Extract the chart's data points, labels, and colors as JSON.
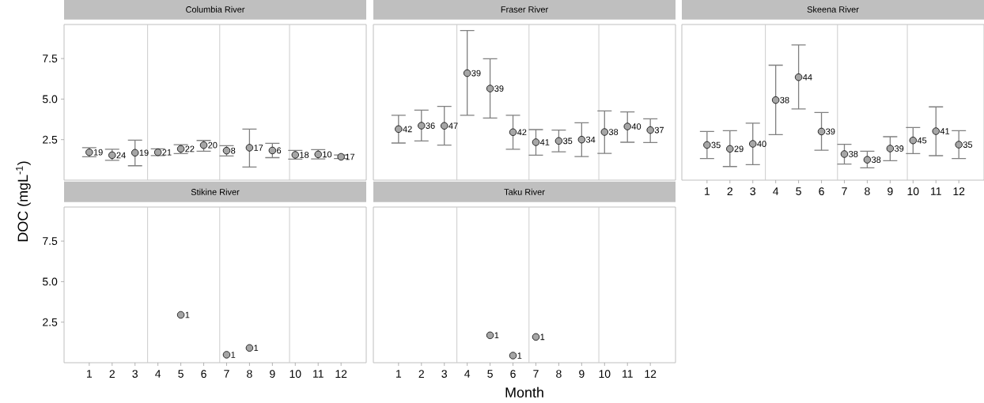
{
  "chart_data": [
    {
      "type": "scatter",
      "title": "Columbia River",
      "ylabel": "DOC (mgL$^{-1}$)",
      "x": [
        1,
        2,
        3,
        4,
        5,
        6,
        7,
        8,
        9,
        10,
        11,
        12
      ],
      "values": [
        1.72,
        1.54,
        1.69,
        1.72,
        1.93,
        2.16,
        1.82,
        2.0,
        1.83,
        1.56,
        1.59,
        1.44
      ],
      "errors": [
        [
          1.44,
          2.0
        ],
        [
          1.22,
          1.91
        ],
        [
          0.89,
          2.47
        ],
        [
          1.52,
          1.93
        ],
        [
          1.64,
          2.19
        ],
        [
          1.78,
          2.45
        ],
        [
          1.49,
          2.13
        ],
        [
          0.81,
          3.15
        ],
        [
          1.39,
          2.27
        ],
        [
          1.3,
          1.83
        ],
        [
          1.31,
          1.88
        ],
        [
          1.33,
          1.55
        ]
      ],
      "annotations": [
        {
          "text": "19",
          "x": 1,
          "y": 1.72
        },
        {
          "text": "24",
          "x": 2,
          "y": 1.54
        },
        {
          "text": "19",
          "x": 3,
          "y": 1.69
        },
        {
          "text": "21",
          "x": 4,
          "y": 1.72
        },
        {
          "text": "22",
          "x": 5,
          "y": 1.93
        },
        {
          "text": "20",
          "x": 6,
          "y": 2.16
        },
        {
          "text": "8",
          "x": 7,
          "y": 1.82
        },
        {
          "text": "17",
          "x": 8,
          "y": 2.0
        },
        {
          "text": "6",
          "x": 9,
          "y": 1.83
        },
        {
          "text": "18",
          "x": 10,
          "y": 1.56
        },
        {
          "text": "10",
          "x": 11,
          "y": 1.59
        },
        {
          "text": "17",
          "x": 12,
          "y": 1.44
        }
      ],
      "color": "#a6a6a6",
      "marker": "circle",
      "xlim": [
        -0.1,
        13.1
      ],
      "ylim": [
        0,
        9.6
      ],
      "yticks": [
        {
          "value": 2.5,
          "label": "2.5"
        },
        {
          "value": 5,
          "label": "5.0"
        },
        {
          "value": 7.5,
          "label": "7.5"
        }
      ],
      "tick_labels": "y",
      "ref_lines": [
        {
          "axis": "x",
          "value": 3.55,
          "color": "#cccccc"
        },
        {
          "axis": "x",
          "value": 6.7,
          "color": "#cccccc"
        },
        {
          "axis": "x",
          "value": 9.75,
          "color": "#cccccc"
        }
      ]
    },
    {
      "type": "scatter",
      "title": "Fraser River",
      "x": [
        1,
        2,
        3,
        4,
        5,
        6,
        7,
        8,
        9,
        10,
        11,
        12
      ],
      "values": [
        3.15,
        3.36,
        3.35,
        6.6,
        5.65,
        2.96,
        2.34,
        2.42,
        2.5,
        2.97,
        3.31,
        3.09
      ],
      "errors": [
        [
          2.29,
          4.0
        ],
        [
          2.42,
          4.32
        ],
        [
          2.16,
          4.55
        ],
        [
          4.0,
          9.23
        ],
        [
          3.83,
          7.49
        ],
        [
          1.91,
          4.0
        ],
        [
          1.54,
          3.12
        ],
        [
          1.75,
          3.09
        ],
        [
          1.46,
          3.54
        ],
        [
          1.65,
          4.27
        ],
        [
          2.34,
          4.21
        ],
        [
          2.32,
          3.78
        ]
      ],
      "annotations": [
        {
          "text": "42",
          "x": 1,
          "y": 3.15
        },
        {
          "text": "36",
          "x": 2,
          "y": 3.36
        },
        {
          "text": "47",
          "x": 3,
          "y": 3.35
        },
        {
          "text": "39",
          "x": 4,
          "y": 6.6
        },
        {
          "text": "39",
          "x": 5,
          "y": 5.65
        },
        {
          "text": "42",
          "x": 6,
          "y": 2.96
        },
        {
          "text": "41",
          "x": 7,
          "y": 2.34
        },
        {
          "text": "35",
          "x": 8,
          "y": 2.42
        },
        {
          "text": "34",
          "x": 9,
          "y": 2.5
        },
        {
          "text": "38",
          "x": 10,
          "y": 2.97
        },
        {
          "text": "40",
          "x": 11,
          "y": 3.31
        },
        {
          "text": "37",
          "x": 12,
          "y": 3.09
        }
      ],
      "color": "#a6a6a6",
      "marker": "circle",
      "xlim": [
        -0.1,
        13.1
      ],
      "ylim": [
        0,
        9.6
      ],
      "tick_labels": false,
      "ref_lines": [
        {
          "axis": "x",
          "value": 3.55,
          "color": "#cccccc"
        },
        {
          "axis": "x",
          "value": 6.7,
          "color": "#cccccc"
        },
        {
          "axis": "x",
          "value": 9.75,
          "color": "#cccccc"
        }
      ]
    },
    {
      "type": "scatter",
      "title": "Skeena River",
      "x": [
        1,
        2,
        3,
        4,
        5,
        6,
        7,
        8,
        9,
        10,
        11,
        12
      ],
      "values": [
        2.17,
        1.93,
        2.24,
        4.94,
        6.35,
        3.0,
        1.61,
        1.26,
        1.95,
        2.45,
        3.02,
        2.19
      ],
      "errors": [
        [
          1.33,
          3.0
        ],
        [
          0.84,
          3.05
        ],
        [
          0.96,
          3.51
        ],
        [
          2.81,
          7.09
        ],
        [
          4.39,
          8.34
        ],
        [
          1.85,
          4.17
        ],
        [
          0.99,
          2.21
        ],
        [
          0.76,
          1.78
        ],
        [
          1.2,
          2.68
        ],
        [
          1.64,
          3.25
        ],
        [
          1.51,
          4.52
        ],
        [
          1.33,
          3.05
        ]
      ],
      "annotations": [
        {
          "text": "35",
          "x": 1,
          "y": 2.17
        },
        {
          "text": "29",
          "x": 2,
          "y": 1.93
        },
        {
          "text": "40",
          "x": 3,
          "y": 2.24
        },
        {
          "text": "38",
          "x": 4,
          "y": 4.94
        },
        {
          "text": "44",
          "x": 5,
          "y": 6.35
        },
        {
          "text": "39",
          "x": 6,
          "y": 3.0
        },
        {
          "text": "38",
          "x": 7,
          "y": 1.61
        },
        {
          "text": "38",
          "x": 8,
          "y": 1.26
        },
        {
          "text": "39",
          "x": 9,
          "y": 1.95
        },
        {
          "text": "45",
          "x": 10,
          "y": 2.45
        },
        {
          "text": "41",
          "x": 11,
          "y": 3.02
        },
        {
          "text": "35",
          "x": 12,
          "y": 2.19
        }
      ],
      "color": "#a6a6a6",
      "marker": "circle",
      "xlim": [
        -0.1,
        13.1
      ],
      "ylim": [
        0,
        9.6
      ],
      "xticks": [
        1,
        2,
        3,
        4,
        5,
        6,
        7,
        8,
        9,
        10,
        11,
        12
      ],
      "tick_labels": "x",
      "ref_lines": [
        {
          "axis": "x",
          "value": 3.55,
          "color": "#cccccc"
        },
        {
          "axis": "x",
          "value": 6.7,
          "color": "#cccccc"
        },
        {
          "axis": "x",
          "value": 9.75,
          "color": "#cccccc"
        }
      ]
    },
    {
      "type": "scatter",
      "title": "Stikine River",
      "x": [
        5,
        7,
        8
      ],
      "values": [
        2.95,
        0.49,
        0.91
      ],
      "annotations": [
        {
          "text": "1",
          "x": 5,
          "y": 2.95
        },
        {
          "text": "1",
          "x": 7,
          "y": 0.49
        },
        {
          "text": "1",
          "x": 8,
          "y": 0.91
        }
      ],
      "color": "#a6a6a6",
      "marker": "circle",
      "xlim": [
        -0.1,
        13.1
      ],
      "ylim": [
        0,
        9.6
      ],
      "xticks": [
        1,
        2,
        3,
        4,
        5,
        6,
        7,
        8,
        9,
        10,
        11,
        12
      ],
      "yticks": [
        {
          "value": 2.5,
          "label": "2.5"
        },
        {
          "value": 5,
          "label": "5.0"
        },
        {
          "value": 7.5,
          "label": "7.5"
        }
      ],
      "ref_lines": [
        {
          "axis": "x",
          "value": 3.55,
          "color": "#cccccc"
        },
        {
          "axis": "x",
          "value": 6.7,
          "color": "#cccccc"
        },
        {
          "axis": "x",
          "value": 9.75,
          "color": "#cccccc"
        }
      ]
    },
    {
      "type": "scatter",
      "title": "Taku River",
      "xlabel": "Month",
      "x": [
        5,
        6,
        7
      ],
      "values": [
        1.69,
        0.44,
        1.59
      ],
      "annotations": [
        {
          "text": "1",
          "x": 5,
          "y": 1.69
        },
        {
          "text": "1",
          "x": 6,
          "y": 0.44
        },
        {
          "text": "1",
          "x": 7,
          "y": 1.59
        }
      ],
      "color": "#a6a6a6",
      "marker": "circle",
      "xlim": [
        -0.1,
        13.1
      ],
      "ylim": [
        0,
        9.6
      ],
      "xticks": [
        1,
        2,
        3,
        4,
        5,
        6,
        7,
        8,
        9,
        10,
        11,
        12
      ],
      "tick_labels": "x",
      "ref_lines": [
        {
          "axis": "x",
          "value": 3.55,
          "color": "#cccccc"
        },
        {
          "axis": "x",
          "value": 6.7,
          "color": "#cccccc"
        },
        {
          "axis": "x",
          "value": 9.75,
          "color": "#cccccc"
        }
      ]
    }
  ]
}
